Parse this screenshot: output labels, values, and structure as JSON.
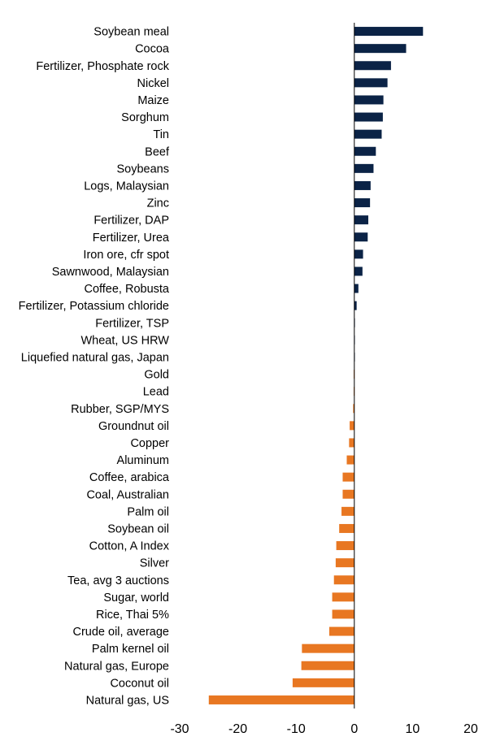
{
  "chart_data": {
    "type": "bar",
    "orientation": "horizontal",
    "title": "",
    "xlabel": "",
    "ylabel": "",
    "xlim": [
      -30,
      20
    ],
    "xticks": [
      "-30",
      "-20",
      "-10",
      "0",
      "10",
      "20"
    ],
    "grid": false,
    "legend": "none",
    "colors": {
      "positive": "#0b2346",
      "negative": "#e87722",
      "axis": "#000000"
    },
    "categories": [
      "Soybean meal",
      "Cocoa",
      "Fertilizer, Phosphate rock",
      "Nickel",
      "Maize",
      "Sorghum",
      "Tin",
      "Beef",
      "Soybeans",
      "Logs, Malaysian",
      "Zinc",
      "Fertilizer, DAP",
      "Fertilizer, Urea",
      "Iron ore, cfr spot",
      "Sawnwood, Malaysian",
      "Coffee, Robusta",
      "Fertilizer, Potassium chloride",
      "Fertilizer, TSP",
      "Wheat, US HRW",
      "Liquefied natural gas, Japan",
      "Gold",
      "Lead",
      "Rubber, SGP/MYS",
      "Groundnut oil",
      "Copper",
      "Aluminum",
      "Coffee, arabica",
      "Coal, Australian",
      "Palm oil",
      "Soybean oil",
      "Cotton, A Index",
      "Silver",
      "Tea, avg 3 auctions",
      "Sugar, world",
      "Rice, Thai 5%",
      "Crude oil, average",
      "Palm kernel oil",
      "Natural gas, Europe",
      "Coconut oil",
      "Natural gas, US"
    ],
    "values": [
      11.8,
      8.9,
      6.3,
      5.7,
      5.0,
      4.9,
      4.7,
      3.7,
      3.3,
      2.8,
      2.7,
      2.4,
      2.3,
      1.5,
      1.4,
      0.7,
      0.4,
      0.1,
      0.05,
      0.02,
      -0.1,
      -0.1,
      -0.2,
      -0.8,
      -0.9,
      -1.3,
      -2.0,
      -2.0,
      -2.2,
      -2.6,
      -3.1,
      -3.2,
      -3.5,
      -3.8,
      -3.8,
      -4.3,
      -9.0,
      -9.1,
      -10.6,
      -25.0
    ]
  }
}
